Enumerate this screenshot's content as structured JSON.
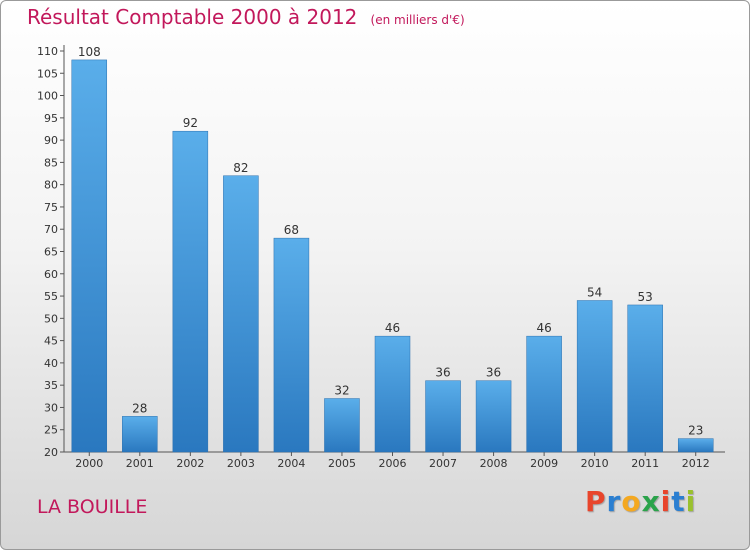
{
  "chart_data": {
    "type": "bar",
    "title": "Résultat Comptable 2000 à 2012",
    "subtitle": "(en milliers d'€)",
    "categories": [
      "2000",
      "2001",
      "2002",
      "2003",
      "2004",
      "2005",
      "2006",
      "2007",
      "2008",
      "2009",
      "2010",
      "2011",
      "2012"
    ],
    "values": [
      108,
      28,
      92,
      82,
      68,
      32,
      46,
      36,
      36,
      46,
      54,
      53,
      23
    ],
    "ylim": [
      20,
      110
    ],
    "yticks": [
      20,
      25,
      30,
      35,
      40,
      45,
      50,
      55,
      60,
      65,
      70,
      75,
      80,
      85,
      90,
      95,
      100,
      105,
      110
    ],
    "grid": false,
    "bar_color": "#3d8fd6"
  },
  "location": "LA BOUILLE",
  "logo": {
    "letters": [
      "P",
      "r",
      "o",
      "x",
      "i",
      "t",
      "i"
    ],
    "colors": [
      "#e8452c",
      "#2b7fd1",
      "#f4a820",
      "#2aa34a",
      "#e8452c",
      "#2b7fd1",
      "#9ac12e"
    ]
  },
  "colors": {
    "accent": "#c2185b",
    "axis": "#555555"
  }
}
